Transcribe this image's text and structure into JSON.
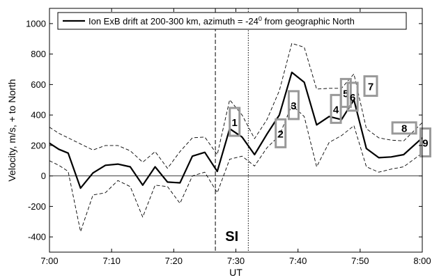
{
  "chart_data": {
    "type": "line",
    "xlabel": "UT",
    "ylabel": "Velocity, m/s, + to North",
    "xlim": [
      0,
      60
    ],
    "ylim": [
      -500,
      1100
    ],
    "xticks": [
      {
        "value": 0,
        "label": "7:00"
      },
      {
        "value": 10,
        "label": "7:10"
      },
      {
        "value": 20,
        "label": "7:20"
      },
      {
        "value": 30,
        "label": "7:30"
      },
      {
        "value": 40,
        "label": "7:40"
      },
      {
        "value": 50,
        "label": "7:50"
      },
      {
        "value": 60,
        "label": "8:00"
      }
    ],
    "yticks": [
      -400,
      -200,
      0,
      200,
      400,
      600,
      800,
      1000
    ],
    "legend": {
      "position": "top",
      "text_main": "Ion ExB drift at 200-300 km, azimuth = -24",
      "text_sup": "0",
      "text_tail": " from geographic North"
    },
    "x": [
      0,
      1.5,
      3,
      5,
      7,
      9,
      11,
      13,
      15,
      17,
      19,
      21,
      23,
      25,
      27,
      29,
      31,
      33,
      35,
      37,
      39,
      41,
      43,
      45,
      47,
      49,
      51,
      53,
      55,
      57,
      60
    ],
    "series": [
      {
        "name": "Ion ExB drift at 200-300 km, azimuth = -24° from geographic North",
        "style": "solid",
        "values": [
          215,
          175,
          150,
          -80,
          20,
          70,
          78,
          60,
          -60,
          60,
          -40,
          -45,
          130,
          155,
          30,
          310,
          255,
          140,
          275,
          400,
          680,
          615,
          335,
          390,
          370,
          500,
          180,
          120,
          125,
          140,
          250
        ]
      },
      {
        "name": "upper bound",
        "style": "dashed",
        "values": [
          320,
          280,
          250,
          210,
          170,
          200,
          200,
          165,
          90,
          160,
          50,
          160,
          250,
          255,
          140,
          500,
          400,
          245,
          370,
          560,
          870,
          845,
          570,
          575,
          575,
          670,
          310,
          250,
          235,
          230,
          350
        ]
      },
      {
        "name": "lower bound",
        "style": "dashed",
        "values": [
          100,
          70,
          30,
          -365,
          -125,
          -110,
          -30,
          -70,
          -270,
          -60,
          -70,
          -180,
          0,
          25,
          -110,
          110,
          130,
          65,
          185,
          265,
          465,
          390,
          60,
          220,
          265,
          330,
          60,
          25,
          45,
          60,
          150
        ]
      }
    ],
    "vlines": [
      {
        "x": 26.7,
        "style": "dashed"
      },
      {
        "x": 32.0,
        "style": "dotted"
      }
    ],
    "hline": {
      "y": 0
    },
    "annotation_label": "SI",
    "boxes": [
      {
        "label": "1",
        "x": 29.8,
        "y": 355
      },
      {
        "label": "2",
        "x": 37.2,
        "y": 280
      },
      {
        "label": "3",
        "x": 39.3,
        "y": 465
      },
      {
        "label": "4",
        "x": 46.1,
        "y": 440
      },
      {
        "label": "5",
        "x": 47.7,
        "y": 545
      },
      {
        "label": "6",
        "x": 48.8,
        "y": 520
      },
      {
        "label": "7",
        "x": 51.7,
        "y": 590
      },
      {
        "label": "8",
        "x": 57.1,
        "y": 315
      },
      {
        "label": "9",
        "x": 60.5,
        "y": 220
      }
    ]
  }
}
